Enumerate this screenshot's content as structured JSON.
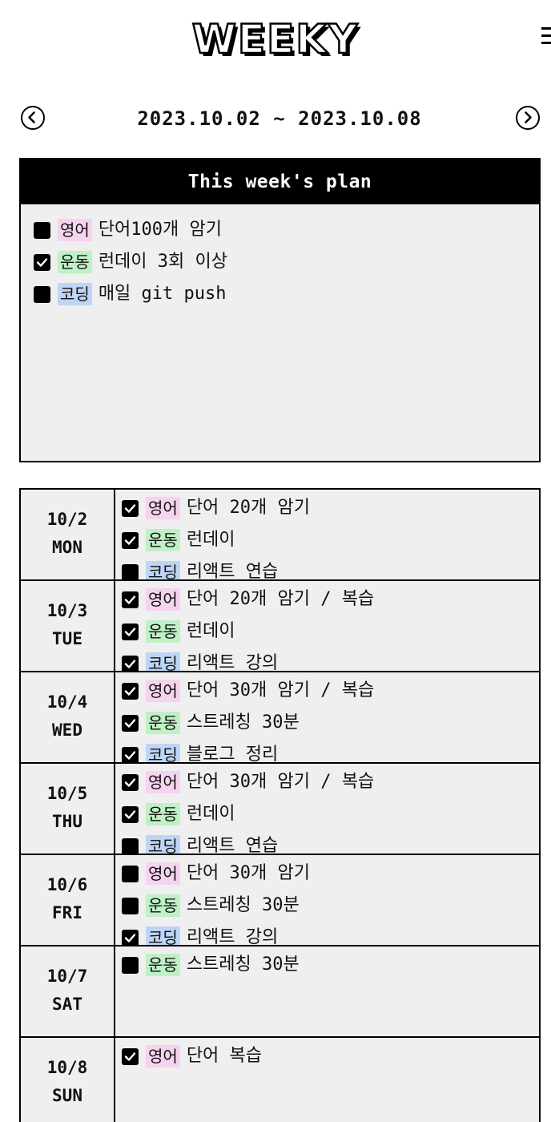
{
  "header": {
    "logo": "WEEKY",
    "menu_icon": "hamburger-menu-icon"
  },
  "week_nav": {
    "range": "2023.10.02 ~ 2023.10.08",
    "prev_icon": "chevron-left-circle-icon",
    "next_icon": "chevron-right-circle-icon"
  },
  "tags": {
    "english": {
      "label": "영어",
      "color": "#f6d3ef"
    },
    "exercise": {
      "label": "운동",
      "color": "#bff0c6"
    },
    "coding": {
      "label": "코딩",
      "color": "#bed5f5"
    }
  },
  "plan": {
    "title": "This week's plan",
    "items": [
      {
        "checked": false,
        "tag": "영어",
        "tag_color": "#f6d3ef",
        "text": "단어100개 암기"
      },
      {
        "checked": true,
        "tag": "운동",
        "tag_color": "#bff0c6",
        "text": "런데이 3회 이상"
      },
      {
        "checked": false,
        "tag": "코딩",
        "tag_color": "#bed5f5",
        "text": "매일 git push"
      }
    ]
  },
  "days": [
    {
      "date": "10/2",
      "day": "MON",
      "items": [
        {
          "checked": true,
          "tag": "영어",
          "tag_color": "#f6d3ef",
          "text": "단어 20개 암기"
        },
        {
          "checked": true,
          "tag": "운동",
          "tag_color": "#bff0c6",
          "text": "런데이"
        },
        {
          "checked": false,
          "tag": "코딩",
          "tag_color": "#bed5f5",
          "text": "리액트 연습"
        }
      ]
    },
    {
      "date": "10/3",
      "day": "TUE",
      "items": [
        {
          "checked": true,
          "tag": "영어",
          "tag_color": "#f6d3ef",
          "text": "단어 20개 암기 / 복습"
        },
        {
          "checked": true,
          "tag": "운동",
          "tag_color": "#bff0c6",
          "text": "런데이"
        },
        {
          "checked": true,
          "tag": "코딩",
          "tag_color": "#bed5f5",
          "text": "리액트 강의"
        }
      ]
    },
    {
      "date": "10/4",
      "day": "WED",
      "items": [
        {
          "checked": true,
          "tag": "영어",
          "tag_color": "#f6d3ef",
          "text": "단어 30개 암기 / 복습"
        },
        {
          "checked": true,
          "tag": "운동",
          "tag_color": "#bff0c6",
          "text": "스트레칭 30분"
        },
        {
          "checked": true,
          "tag": "코딩",
          "tag_color": "#bed5f5",
          "text": "블로그 정리"
        }
      ]
    },
    {
      "date": "10/5",
      "day": "THU",
      "items": [
        {
          "checked": true,
          "tag": "영어",
          "tag_color": "#f6d3ef",
          "text": "단어 30개 암기 / 복습"
        },
        {
          "checked": true,
          "tag": "운동",
          "tag_color": "#bff0c6",
          "text": "런데이"
        },
        {
          "checked": false,
          "tag": "코딩",
          "tag_color": "#bed5f5",
          "text": "리액트 연습"
        }
      ]
    },
    {
      "date": "10/6",
      "day": "FRI",
      "items": [
        {
          "checked": false,
          "tag": "영어",
          "tag_color": "#f6d3ef",
          "text": "단어 30개 암기"
        },
        {
          "checked": false,
          "tag": "운동",
          "tag_color": "#bff0c6",
          "text": "스트레칭 30분"
        },
        {
          "checked": true,
          "tag": "코딩",
          "tag_color": "#bed5f5",
          "text": "리액트 강의"
        }
      ]
    },
    {
      "date": "10/7",
      "day": "SAT",
      "items": [
        {
          "checked": false,
          "tag": "운동",
          "tag_color": "#bff0c6",
          "text": "스트레칭 30분"
        }
      ]
    },
    {
      "date": "10/8",
      "day": "SUN",
      "items": [
        {
          "checked": true,
          "tag": "영어",
          "tag_color": "#f6d3ef",
          "text": "단어 복습"
        }
      ]
    }
  ]
}
